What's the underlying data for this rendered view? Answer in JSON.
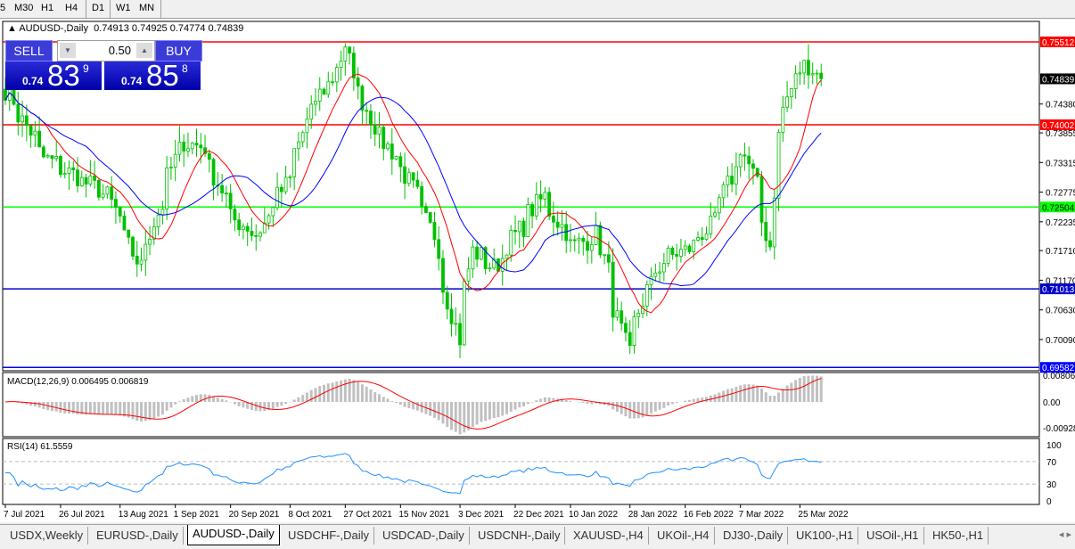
{
  "timeframes": [
    "5",
    "M30",
    "H1",
    "H4",
    "D1",
    "W1",
    "MN"
  ],
  "active_timeframe": "D1",
  "chart": {
    "title": "AUDUSD-,Daily",
    "ohlc": "0.74913 0.74925 0.74774 0.74839"
  },
  "trade_panel": {
    "sell_label": "SELL",
    "buy_label": "BUY",
    "lot": "0.50",
    "sell_prefix": "0.74",
    "sell_big": "83",
    "sell_sup": "9",
    "buy_prefix": "0.74",
    "buy_big": "85",
    "buy_sup": "8"
  },
  "price_axis": {
    "ticks": [
      "0.74380",
      "0.73855",
      "0.73315",
      "0.72775",
      "0.72235",
      "0.71710",
      "0.71170",
      "0.70630",
      "0.70090"
    ],
    "current": "0.74839",
    "current_value": 0.74839
  },
  "levels": [
    {
      "value": 0.75512,
      "label": "0.75512",
      "color": "#ff0000"
    },
    {
      "value": 0.74002,
      "label": "0.74002",
      "color": "#ff0000"
    },
    {
      "value": 0.72504,
      "label": "0.72504",
      "color": "#00ff00"
    },
    {
      "value": 0.71013,
      "label": "0.71013",
      "color": "#0000cc"
    },
    {
      "value": 0.69582,
      "label": "0.69582",
      "color": "#0000ff"
    }
  ],
  "macd": {
    "label": "MACD(12,26,9) 0.006495 0.006819",
    "ticks": [
      "0.008061",
      "0.00",
      "-0.00928"
    ]
  },
  "rsi": {
    "label": "RSI(14) 61.5559",
    "ticks": [
      "100",
      "70",
      "30",
      "0"
    ]
  },
  "date_axis": [
    "7 Jul 2021",
    "26 Jul 2021",
    "13 Aug 2021",
    "1 Sep 2021",
    "20 Sep 2021",
    "8 Oct 2021",
    "27 Oct 2021",
    "15 Nov 2021",
    "3 Dec 2021",
    "22 Dec 2021",
    "10 Jan 2022",
    "28 Jan 2022",
    "16 Feb 2022",
    "7 Mar 2022",
    "25 Mar 2022"
  ],
  "colors": {
    "bull": "#00c000",
    "bear": "#00c000",
    "ma_fast": "#ff0000",
    "ma_slow": "#0000ff",
    "macd_hist": "#c0c0c0",
    "macd_signal": "#ff0000",
    "rsi": "#1e90ff"
  },
  "chart_data": {
    "type": "candlestick",
    "approx_close_path": [
      [
        "2021-07-07",
        0.7465
      ],
      [
        "2021-07-20",
        0.734
      ],
      [
        "2021-08-10",
        0.727
      ],
      [
        "2021-08-20",
        0.714
      ],
      [
        "2021-09-03",
        0.737
      ],
      [
        "2021-09-10",
        0.736
      ],
      [
        "2021-09-20",
        0.723
      ],
      [
        "2021-09-28",
        0.72
      ],
      [
        "2021-10-08",
        0.73
      ],
      [
        "2021-10-15",
        0.742
      ],
      [
        "2021-10-27",
        0.753
      ],
      [
        "2021-11-05",
        0.74
      ],
      [
        "2021-11-15",
        0.732
      ],
      [
        "2021-11-25",
        0.72
      ],
      [
        "2021-12-03",
        0.701
      ],
      [
        "2021-12-08",
        0.717
      ],
      [
        "2021-12-15",
        0.714
      ],
      [
        "2021-12-22",
        0.72
      ],
      [
        "2021-12-31",
        0.727
      ],
      [
        "2022-01-10",
        0.718
      ],
      [
        "2022-01-18",
        0.72
      ],
      [
        "2022-01-28",
        0.698
      ],
      [
        "2022-02-03",
        0.71
      ],
      [
        "2022-02-10",
        0.716
      ],
      [
        "2022-02-16",
        0.717
      ],
      [
        "2022-02-25",
        0.722
      ],
      [
        "2022-03-07",
        0.736
      ],
      [
        "2022-03-10",
        0.731
      ],
      [
        "2022-03-16",
        0.718
      ],
      [
        "2022-03-18",
        0.738
      ],
      [
        "2022-03-25",
        0.75
      ],
      [
        "2022-03-29",
        0.751
      ],
      [
        "2022-04-01",
        0.74839
      ]
    ]
  },
  "tabs": [
    "USDX,Weekly",
    "EURUSD-,Daily",
    "AUDUSD-,Daily",
    "USDCHF-,Daily",
    "USDCAD-,Daily",
    "USDCNH-,Daily",
    "XAUUSD-,H4",
    "UKOil-,H4",
    "DJ30-,Daily",
    "UK100-,H1",
    "USOil-,H1",
    "HK50-,H1"
  ],
  "active_tab": "AUDUSD-,Daily"
}
